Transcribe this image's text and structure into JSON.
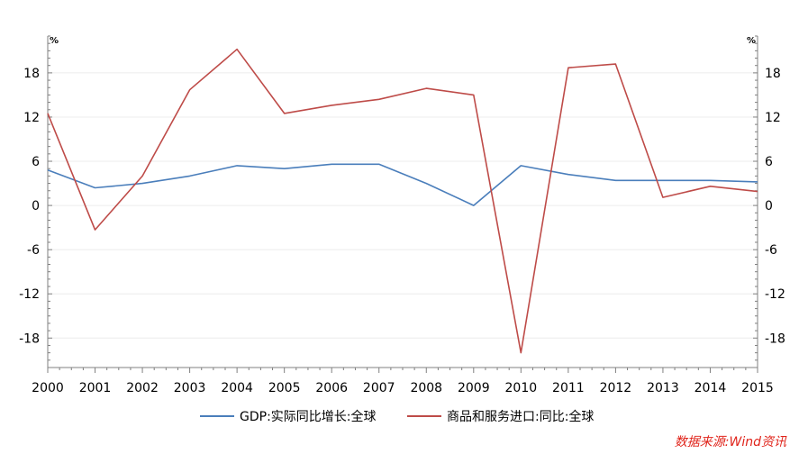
{
  "chart_data": {
    "type": "line",
    "x": [
      "2000",
      "2001",
      "2002",
      "2003",
      "2004",
      "2005",
      "2006",
      "2007",
      "2008",
      "2009",
      "2010",
      "2011",
      "2012",
      "2013",
      "2014",
      "2015"
    ],
    "series": [
      {
        "name": "GDP:实际同比增长:全球",
        "color": "#4a7ebb",
        "axis": "left",
        "values": [
          4.8,
          2.4,
          3.0,
          4.0,
          5.4,
          5.0,
          5.6,
          5.6,
          3.0,
          0.0,
          5.4,
          4.2,
          3.4,
          3.4,
          3.4,
          3.2
        ]
      },
      {
        "name": "商品和服务进口:同比:全球",
        "color": "#be4b48",
        "axis": "right",
        "values": [
          12.5,
          -3.3,
          4.0,
          15.7,
          21.2,
          12.5,
          13.6,
          14.4,
          15.9,
          15.0,
          -20.0,
          18.7,
          19.2,
          1.1,
          2.6,
          1.9
        ]
      }
    ],
    "y_left": {
      "unit": "%",
      "ticks": [
        "18",
        "12",
        "6",
        "0",
        "-6",
        "-12",
        "-18"
      ],
      "tick_values": [
        18,
        12,
        6,
        0,
        -6,
        -12,
        -18
      ],
      "ylim": [
        -22,
        23
      ]
    },
    "y_right": {
      "unit": "%",
      "ticks": [
        "18",
        "12",
        "6",
        "0",
        "-6",
        "-12",
        "-18"
      ],
      "tick_values": [
        18,
        12,
        6,
        0,
        -6,
        -12,
        -18
      ],
      "ylim": [
        -22,
        23
      ]
    },
    "grid": true,
    "legend": "bottom-center",
    "source": "数据来源:Wind资讯"
  }
}
